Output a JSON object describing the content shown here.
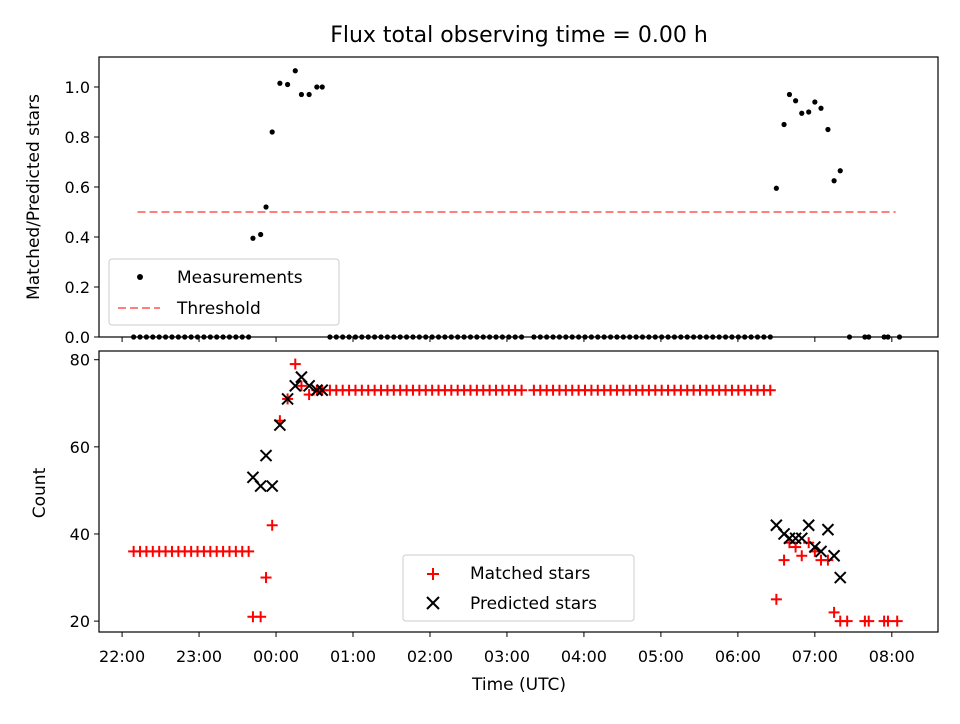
{
  "colors": {
    "measurement": "#000000",
    "threshold": "#ff7f7f",
    "matched": "#ff0000",
    "predicted": "#000000"
  },
  "chart_data": [
    {
      "type": "scatter",
      "title": "Flux total observing time = 0.00 h",
      "ylabel": "Matched/Predicted stars",
      "xlim": [
        21.7,
        32.6
      ],
      "ylim": [
        0,
        1.12
      ],
      "yticks": [
        0.0,
        0.2,
        0.4,
        0.6,
        0.8,
        1.0
      ],
      "ytick_labels": [
        "0.0",
        "0.2",
        "0.4",
        "0.6",
        "0.8",
        "1.0"
      ],
      "threshold": {
        "value": 0.5,
        "x_range": [
          22.2,
          32.05
        ]
      },
      "legend": {
        "position": "lower-left",
        "entries": [
          "Measurements",
          "Threshold"
        ]
      },
      "measurement_points": [
        [
          23.7,
          0.395
        ],
        [
          23.8,
          0.41
        ],
        [
          23.87,
          0.52
        ],
        [
          23.95,
          0.82
        ],
        [
          24.05,
          1.015
        ],
        [
          24.15,
          1.01
        ],
        [
          24.25,
          1.065
        ],
        [
          24.33,
          0.97
        ],
        [
          24.43,
          0.97
        ],
        [
          24.53,
          1.0
        ],
        [
          24.6,
          1.0
        ],
        [
          30.5,
          0.595
        ],
        [
          30.6,
          0.85
        ],
        [
          30.67,
          0.97
        ],
        [
          30.75,
          0.945
        ],
        [
          30.83,
          0.895
        ],
        [
          30.92,
          0.9
        ],
        [
          31.0,
          0.94
        ],
        [
          31.08,
          0.915
        ],
        [
          31.17,
          0.83
        ],
        [
          31.25,
          0.625
        ],
        [
          31.33,
          0.665
        ]
      ],
      "zero_segments": [
        {
          "start": 22.15,
          "end": 23.65,
          "step": 0.083
        },
        {
          "start": 24.7,
          "end": 27.2,
          "step": 0.083
        },
        {
          "start": 27.35,
          "end": 30.45,
          "step": 0.083
        }
      ],
      "zero_extra": [
        31.45,
        31.65,
        31.7,
        31.9,
        31.95,
        32.1
      ]
    },
    {
      "type": "scatter",
      "xlabel": "Time (UTC)",
      "ylabel": "Count",
      "xlim": [
        21.7,
        32.6
      ],
      "ylim": [
        17.5,
        82
      ],
      "xticks": [
        22,
        23,
        24,
        25,
        26,
        27,
        28,
        29,
        30,
        31,
        32
      ],
      "xtick_labels": [
        "22:00",
        "23:00",
        "00:00",
        "01:00",
        "02:00",
        "03:00",
        "04:00",
        "05:00",
        "06:00",
        "07:00",
        "08:00"
      ],
      "yticks": [
        20,
        40,
        60,
        80
      ],
      "ytick_labels": [
        "20",
        "40",
        "60",
        "80"
      ],
      "legend": {
        "position": "lower-center",
        "entries": [
          "Matched stars",
          "Predicted stars"
        ]
      },
      "matched_flat_segments": [
        {
          "start": 22.15,
          "end": 23.65,
          "step": 0.083,
          "value": 36
        },
        {
          "start": 24.7,
          "end": 27.2,
          "step": 0.083,
          "value": 73
        },
        {
          "start": 27.35,
          "end": 30.45,
          "step": 0.083,
          "value": 73
        }
      ],
      "matched_points": [
        [
          23.7,
          21
        ],
        [
          23.8,
          21
        ],
        [
          23.87,
          30
        ],
        [
          23.95,
          42
        ],
        [
          24.05,
          66
        ],
        [
          24.15,
          71
        ],
        [
          24.25,
          79
        ],
        [
          24.33,
          74
        ],
        [
          24.43,
          72
        ],
        [
          24.53,
          73
        ],
        [
          24.6,
          73
        ],
        [
          30.5,
          25
        ],
        [
          30.6,
          34
        ],
        [
          30.67,
          38
        ],
        [
          30.75,
          37
        ],
        [
          30.83,
          35
        ],
        [
          30.92,
          38
        ],
        [
          31.0,
          36
        ],
        [
          31.08,
          34
        ],
        [
          31.17,
          34
        ],
        [
          31.25,
          22
        ],
        [
          31.33,
          20
        ],
        [
          31.42,
          20
        ],
        [
          31.65,
          20
        ],
        [
          31.7,
          20
        ],
        [
          31.9,
          20
        ],
        [
          31.95,
          20
        ],
        [
          32.07,
          20
        ]
      ],
      "predicted_points": [
        [
          23.7,
          53
        ],
        [
          23.8,
          51
        ],
        [
          23.87,
          58
        ],
        [
          23.95,
          51
        ],
        [
          24.05,
          65
        ],
        [
          24.15,
          71
        ],
        [
          24.25,
          74
        ],
        [
          24.33,
          76
        ],
        [
          24.43,
          74
        ],
        [
          24.53,
          73
        ],
        [
          24.6,
          73
        ],
        [
          30.5,
          42
        ],
        [
          30.6,
          40
        ],
        [
          30.67,
          39
        ],
        [
          30.75,
          39
        ],
        [
          30.83,
          39
        ],
        [
          30.92,
          42
        ],
        [
          31.0,
          37
        ],
        [
          31.08,
          36
        ],
        [
          31.17,
          41
        ],
        [
          31.25,
          35
        ],
        [
          31.33,
          30
        ]
      ]
    }
  ]
}
